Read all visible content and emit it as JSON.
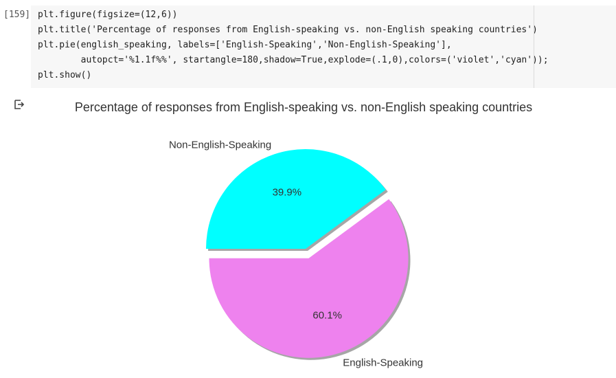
{
  "cell": {
    "exec_count": "[159]",
    "code_lines": [
      "plt.figure(figsize=(12,6))",
      "plt.title('Percentage of responses from English-speaking vs. non-English speaking countries')",
      "plt.pie(english_speaking, labels=['English-Speaking','Non-English-Speaking'],",
      "        autopct='%1.1f%%', startangle=180,shadow=True,explode=(.1,0),colors=('violet','cyan'));",
      "plt.show()"
    ]
  },
  "output": {
    "icon": "output-arrow-icon"
  },
  "chart_data": {
    "type": "pie",
    "title": "Percentage of responses from English-speaking vs. non-English speaking countries",
    "labels": [
      "English-Speaking",
      "Non-English-Speaking"
    ],
    "values": [
      60.1,
      39.9
    ],
    "pct_labels": [
      "60.1%",
      "39.9%"
    ],
    "colors": [
      "#ee82ee",
      "#00ffff"
    ],
    "startangle": 180,
    "shadow": true
  }
}
